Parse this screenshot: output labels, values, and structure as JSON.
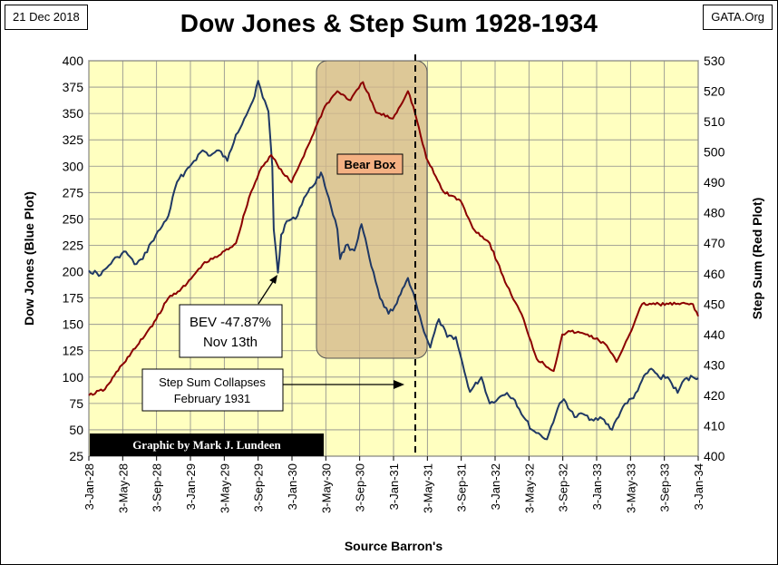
{
  "header": {
    "date": "21 Dec 2018",
    "source_tag": "GATA.Org",
    "title": "Dow Jones & Step Sum 1928-1934"
  },
  "chart_data": {
    "type": "line",
    "title": "Dow Jones & Step Sum 1928-1934",
    "xlabel": "Source Barron's",
    "ylabel_left": "Dow Jones (Blue Plot)",
    "ylabel_right": "Step Sum (Red Plot)",
    "y_left_range": [
      25,
      400
    ],
    "y_right_range": [
      400,
      530
    ],
    "y_left_ticks": [
      25,
      50,
      75,
      100,
      125,
      150,
      175,
      200,
      225,
      250,
      275,
      300,
      325,
      350,
      375,
      400
    ],
    "y_right_ticks": [
      400,
      410,
      420,
      430,
      440,
      450,
      460,
      470,
      480,
      490,
      500,
      510,
      520,
      530
    ],
    "x_ticks": [
      "3-Jan-28",
      "3-May-28",
      "3-Sep-28",
      "3-Jan-29",
      "3-May-29",
      "3-Sep-29",
      "3-Jan-30",
      "3-May-30",
      "3-Sep-30",
      "3-Jan-31",
      "3-May-31",
      "3-Sep-31",
      "3-Jan-32",
      "3-May-32",
      "3-Sep-32",
      "3-Jan-33",
      "3-May-33",
      "3-Sep-33",
      "3-Jan-34"
    ],
    "grid": true,
    "background_color": "#FFFFC0",
    "series": [
      {
        "axis": "left",
        "color": "#1F3864",
        "points": [
          [
            "1928-01-03",
            201
          ],
          [
            "1928-02-15",
            197
          ],
          [
            "1928-03-15",
            206
          ],
          [
            "1928-04-15",
            214
          ],
          [
            "1928-05-15",
            219
          ],
          [
            "1928-06-15",
            207
          ],
          [
            "1928-07-15",
            212
          ],
          [
            "1928-08-15",
            228
          ],
          [
            "1928-09-15",
            240
          ],
          [
            "1928-10-15",
            253
          ],
          [
            "1928-11-15",
            285
          ],
          [
            "1928-12-15",
            295
          ],
          [
            "1929-01-15",
            305
          ],
          [
            "1929-02-15",
            315
          ],
          [
            "1929-03-15",
            310
          ],
          [
            "1929-04-15",
            315
          ],
          [
            "1929-05-15",
            305
          ],
          [
            "1929-06-15",
            330
          ],
          [
            "1929-07-15",
            345
          ],
          [
            "1929-08-15",
            362
          ],
          [
            "1929-09-03",
            381
          ],
          [
            "1929-09-20",
            365
          ],
          [
            "1929-10-10",
            352
          ],
          [
            "1929-10-24",
            300
          ],
          [
            "1929-10-29",
            240
          ],
          [
            "1929-11-13",
            199
          ],
          [
            "1929-11-25",
            235
          ],
          [
            "1929-12-15",
            248
          ],
          [
            "1930-01-15",
            250
          ],
          [
            "1930-02-15",
            270
          ],
          [
            "1930-03-15",
            280
          ],
          [
            "1930-04-17",
            294
          ],
          [
            "1930-05-15",
            270
          ],
          [
            "1930-06-15",
            240
          ],
          [
            "1930-06-25",
            212
          ],
          [
            "1930-07-15",
            225
          ],
          [
            "1930-08-15",
            220
          ],
          [
            "1930-09-10",
            245
          ],
          [
            "1930-10-15",
            205
          ],
          [
            "1930-11-15",
            175
          ],
          [
            "1930-12-16",
            160
          ],
          [
            "1931-01-15",
            170
          ],
          [
            "1931-02-24",
            194
          ],
          [
            "1931-03-15",
            180
          ],
          [
            "1931-04-15",
            150
          ],
          [
            "1931-05-15",
            128
          ],
          [
            "1931-06-15",
            155
          ],
          [
            "1931-07-15",
            138
          ],
          [
            "1931-08-15",
            138
          ],
          [
            "1931-09-15",
            105
          ],
          [
            "1931-10-05",
            86
          ],
          [
            "1931-11-15",
            100
          ],
          [
            "1931-12-15",
            75
          ],
          [
            "1932-01-15",
            80
          ],
          [
            "1932-02-15",
            85
          ],
          [
            "1932-03-15",
            78
          ],
          [
            "1932-04-15",
            62
          ],
          [
            "1932-05-15",
            50
          ],
          [
            "1932-06-15",
            45
          ],
          [
            "1932-07-08",
            41
          ],
          [
            "1932-08-15",
            70
          ],
          [
            "1932-09-07",
            79
          ],
          [
            "1932-10-15",
            62
          ],
          [
            "1932-11-15",
            65
          ],
          [
            "1932-12-15",
            60
          ],
          [
            "1933-01-15",
            62
          ],
          [
            "1933-02-27",
            50
          ],
          [
            "1933-03-15",
            60
          ],
          [
            "1933-04-15",
            75
          ],
          [
            "1933-05-15",
            80
          ],
          [
            "1933-06-15",
            97
          ],
          [
            "1933-07-18",
            108
          ],
          [
            "1933-08-15",
            100
          ],
          [
            "1933-09-15",
            100
          ],
          [
            "1933-10-21",
            85
          ],
          [
            "1933-11-15",
            98
          ],
          [
            "1933-12-15",
            100
          ],
          [
            "1934-01-03",
            99
          ]
        ]
      },
      {
        "axis": "right",
        "color": "#8B0000",
        "points": [
          [
            "1928-01-03",
            420
          ],
          [
            "1928-03-01",
            422
          ],
          [
            "1928-05-01",
            430
          ],
          [
            "1928-07-01",
            437
          ],
          [
            "1928-09-01",
            445
          ],
          [
            "1928-10-15",
            452
          ],
          [
            "1928-12-15",
            456
          ],
          [
            "1929-02-15",
            463
          ],
          [
            "1929-04-15",
            466
          ],
          [
            "1929-06-15",
            470
          ],
          [
            "1929-08-01",
            485
          ],
          [
            "1929-09-15",
            495
          ],
          [
            "1929-10-20",
            499
          ],
          [
            "1929-12-01",
            493
          ],
          [
            "1930-01-01",
            490
          ],
          [
            "1930-03-01",
            502
          ],
          [
            "1930-05-01",
            515
          ],
          [
            "1930-06-15",
            520
          ],
          [
            "1930-08-01",
            517
          ],
          [
            "1930-09-15",
            523
          ],
          [
            "1930-11-01",
            513
          ],
          [
            "1931-01-01",
            511
          ],
          [
            "1931-02-24",
            520
          ],
          [
            "1931-03-15",
            515
          ],
          [
            "1931-05-01",
            498
          ],
          [
            "1931-07-01",
            487
          ],
          [
            "1931-09-01",
            484
          ],
          [
            "1931-10-15",
            475
          ],
          [
            "1931-12-15",
            470
          ],
          [
            "1932-02-15",
            456
          ],
          [
            "1932-04-15",
            445
          ],
          [
            "1932-06-01",
            432
          ],
          [
            "1932-08-01",
            428
          ],
          [
            "1932-09-01",
            440
          ],
          [
            "1932-10-01",
            441
          ],
          [
            "1932-12-01",
            440
          ],
          [
            "1933-02-01",
            437
          ],
          [
            "1933-03-15",
            431
          ],
          [
            "1933-05-15",
            443
          ],
          [
            "1933-06-15",
            450
          ],
          [
            "1933-08-15",
            450
          ],
          [
            "1933-10-15",
            450
          ],
          [
            "1933-12-15",
            450
          ],
          [
            "1934-01-03",
            446
          ]
        ]
      }
    ],
    "annotations": {
      "bear_box": "Bear Box",
      "bev": [
        "BEV -47.87%",
        "Nov 13th"
      ],
      "step_sum": [
        "Step Sum Collapses",
        "February 1931"
      ],
      "credit": "Graphic by Mark J. Lundeen"
    }
  }
}
